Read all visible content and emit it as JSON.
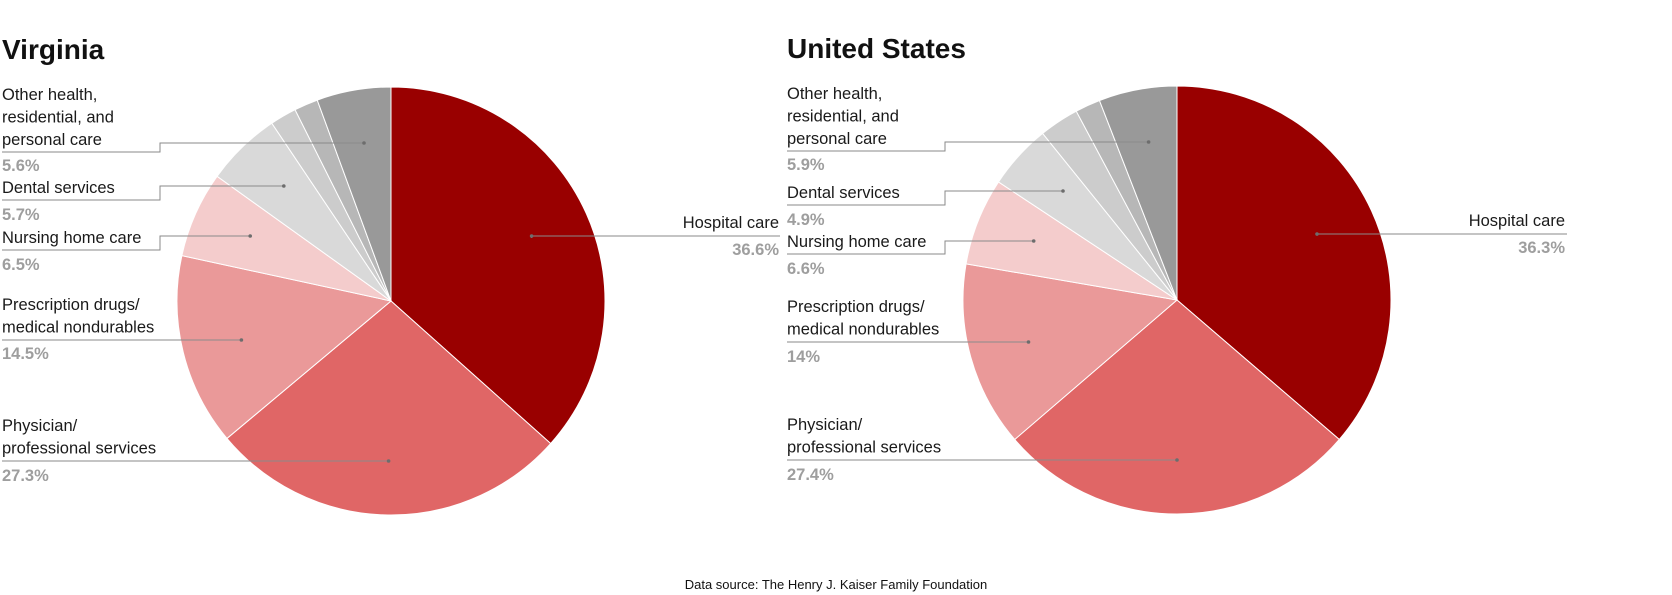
{
  "chart_data": [
    {
      "type": "pie",
      "title": "Virginia",
      "slices": [
        {
          "label": "Hospital care",
          "value": 36.6,
          "display": "36.6%",
          "color": "#990000"
        },
        {
          "label": "Physician/ professional services",
          "value": 27.3,
          "display": "27.3%",
          "color": "#e06666"
        },
        {
          "label": "Prescription drugs/ medical nondurables",
          "value": 14.5,
          "display": "14.5%",
          "color": "#ea9999"
        },
        {
          "label": "Nursing home care",
          "value": 6.5,
          "display": "6.5%",
          "color": "#f4cccc"
        },
        {
          "label": "Dental services",
          "value": 5.7,
          "display": "5.7%",
          "color": "#d9d9d9"
        },
        {
          "label": "",
          "value": 2.0,
          "display": "",
          "color": "#cccccc"
        },
        {
          "label": "",
          "value": 1.8,
          "display": "",
          "color": "#b7b7b7"
        },
        {
          "label": "Other health, residential, and personal care",
          "value": 5.6,
          "display": "5.6%",
          "color": "#999999"
        }
      ]
    },
    {
      "type": "pie",
      "title": "United States",
      "slices": [
        {
          "label": "Hospital care",
          "value": 36.3,
          "display": "36.3%",
          "color": "#990000"
        },
        {
          "label": "Physician/ professional services",
          "value": 27.4,
          "display": "27.4%",
          "color": "#e06666"
        },
        {
          "label": "Prescription drugs/ medical nondurables",
          "value": 14.0,
          "display": "14%",
          "color": "#ea9999"
        },
        {
          "label": "Nursing home care",
          "value": 6.6,
          "display": "6.6%",
          "color": "#f4cccc"
        },
        {
          "label": "Dental services",
          "value": 4.9,
          "display": "4.9%",
          "color": "#d9d9d9"
        },
        {
          "label": "",
          "value": 3.0,
          "display": "",
          "color": "#cccccc"
        },
        {
          "label": "",
          "value": 1.9,
          "display": "",
          "color": "#b7b7b7"
        },
        {
          "label": "Other health, residential, and personal care",
          "value": 5.9,
          "display": "5.9%",
          "color": "#999999"
        }
      ]
    }
  ],
  "source": "Data source: The Henry J. Kaiser Family Foundation"
}
